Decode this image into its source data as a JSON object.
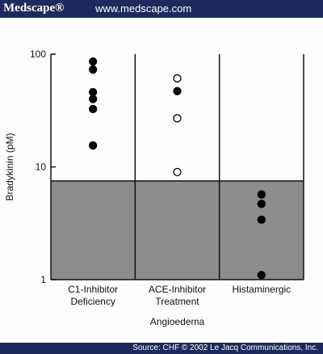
{
  "header": {
    "brand": "Medscape®",
    "url": "www.medscape.com"
  },
  "footer": "Source: CHF © 2002 Le Jacq Communications, Inc.",
  "chart_data": {
    "type": "scatter",
    "x_label": "Angioedema",
    "y_label": "Bradykinin (pM)",
    "categories": [
      "C1-Inhibitor Deficiency",
      "ACE-Inhibitor Treatment",
      "Histaminergic"
    ],
    "series": [
      {
        "color": "#000000",
        "filled": true,
        "values": [
          [
            86,
            73,
            46,
            40,
            32.6,
            15.5
          ],
          [
            47
          ],
          [
            5.7,
            4.7,
            3.4,
            1.1
          ]
        ]
      },
      {
        "color": "#000000",
        "filled": false,
        "values": [
          [],
          [
            61,
            27,
            9.0
          ],
          []
        ]
      }
    ],
    "log_scale": true,
    "ylim": [
      1,
      100
    ],
    "yticks": [
      1,
      10,
      100
    ],
    "shaded_below": 7.5,
    "shade_color": "#8c8c8c"
  }
}
